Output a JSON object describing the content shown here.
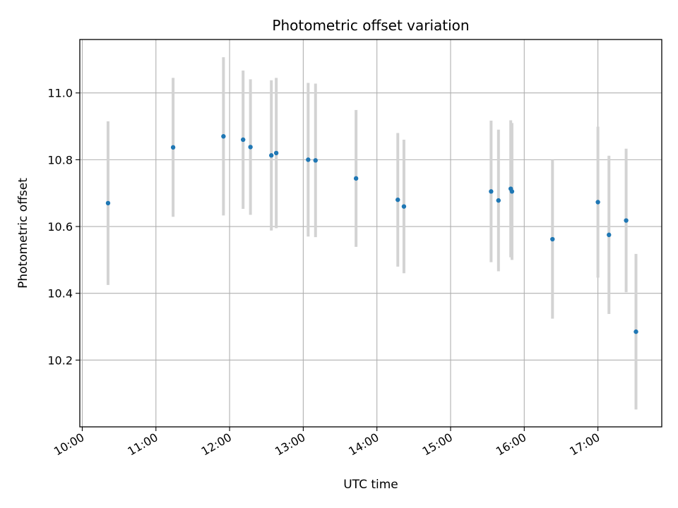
{
  "chart_data": {
    "type": "scatter",
    "title": "Photometric offset variation",
    "xlabel": "UTC time",
    "ylabel": "Photometric offset",
    "x_ticks": [
      "10:00",
      "11:00",
      "12:00",
      "13:00",
      "14:00",
      "15:00",
      "16:00",
      "17:00"
    ],
    "y_ticks": [
      "10.2",
      "10.4",
      "10.6",
      "10.8",
      "11.0"
    ],
    "xlim": [
      "09:58",
      "17:52"
    ],
    "ylim": [
      10.0,
      11.16
    ],
    "grid": true,
    "colors": {
      "point": "#1f77b4",
      "errorbar": "#d3d3d3",
      "grid": "#b0b0b0"
    },
    "points": [
      {
        "x": "10:21",
        "y": 10.67,
        "yerr": 0.245
      },
      {
        "x": "11:14",
        "y": 10.837,
        "yerr": 0.208
      },
      {
        "x": "11:55",
        "y": 10.87,
        "yerr": 0.237
      },
      {
        "x": "12:11",
        "y": 10.86,
        "yerr": 0.207
      },
      {
        "x": "12:17",
        "y": 10.838,
        "yerr": 0.203
      },
      {
        "x": "12:34",
        "y": 10.813,
        "yerr": 0.225
      },
      {
        "x": "12:38",
        "y": 10.82,
        "yerr": 0.225
      },
      {
        "x": "13:04",
        "y": 10.8,
        "yerr": 0.23
      },
      {
        "x": "13:10",
        "y": 10.798,
        "yerr": 0.23
      },
      {
        "x": "13:43",
        "y": 10.744,
        "yerr": 0.205
      },
      {
        "x": "14:17",
        "y": 10.68,
        "yerr": 0.2
      },
      {
        "x": "14:22",
        "y": 10.66,
        "yerr": 0.2
      },
      {
        "x": "15:33",
        "y": 10.705,
        "yerr": 0.212
      },
      {
        "x": "15:39",
        "y": 10.678,
        "yerr": 0.212
      },
      {
        "x": "15:49",
        "y": 10.713,
        "yerr": 0.205
      },
      {
        "x": "15:50",
        "y": 10.705,
        "yerr": 0.205
      },
      {
        "x": "16:23",
        "y": 10.562,
        "yerr": 0.238
      },
      {
        "x": "17:00",
        "y": 10.673,
        "yerr": 0.226
      },
      {
        "x": "17:09",
        "y": 10.575,
        "yerr": 0.237
      },
      {
        "x": "17:23",
        "y": 10.618,
        "yerr": 0.215
      },
      {
        "x": "17:31",
        "y": 10.285,
        "yerr": 0.233
      }
    ]
  }
}
